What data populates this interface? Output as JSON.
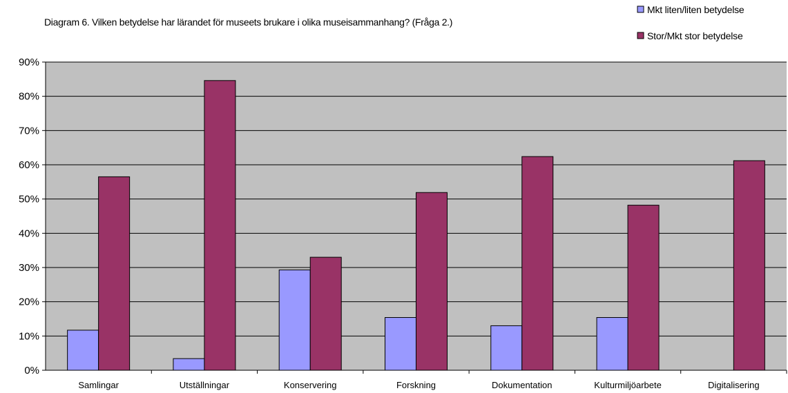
{
  "chart_data": {
    "type": "bar",
    "title": "Diagram 6. Vilken betydelse har lärandet för museets brukare i olika museisammanhang? (Fråga 2.)",
    "categories": [
      "Samlingar",
      "Utställningar",
      "Konservering",
      "Forskning",
      "Dokumentation",
      "Kulturmiljöarbete",
      "Digitalisering"
    ],
    "series": [
      {
        "name": "Mkt liten/liten betydelse",
        "color": "#9999ff",
        "values": [
          11.7,
          3.4,
          29.3,
          15.4,
          13.0,
          15.4,
          0
        ]
      },
      {
        "name": "Stor/Mkt stor betydelse",
        "color": "#993366",
        "values": [
          56.5,
          84.6,
          33.0,
          51.9,
          62.4,
          48.2,
          61.2
        ]
      }
    ],
    "ylim": [
      0,
      90
    ],
    "yticks": [
      "0%",
      "10%",
      "20%",
      "30%",
      "40%",
      "50%",
      "60%",
      "70%",
      "80%",
      "90%"
    ],
    "plot_background": "#c0c0c0",
    "grid": true,
    "legend_position": "top-right"
  }
}
